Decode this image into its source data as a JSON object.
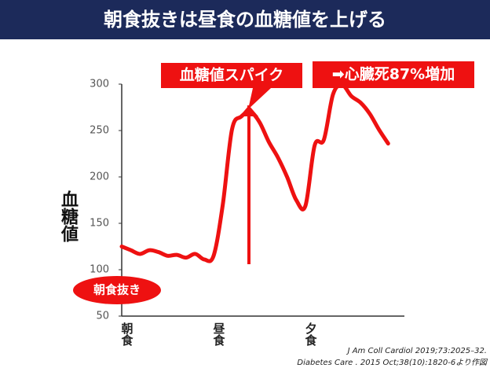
{
  "chart_data": {
    "type": "line",
    "title": "朝食抜きは昼食の血糖値を上げる",
    "y_label": "血糖値",
    "categories": [
      "朝食",
      null,
      null,
      null,
      null,
      null,
      null,
      null,
      null,
      null,
      "昼食",
      null,
      null,
      null,
      null,
      null,
      null,
      null,
      null,
      null,
      "夕食",
      null,
      null,
      null,
      null,
      null,
      null,
      null,
      null,
      null
    ],
    "series": [
      {
        "name": "血糖値",
        "color": "#ee1111",
        "values": [
          125,
          121,
          117,
          121,
          119,
          115,
          116,
          113,
          117,
          111,
          115,
          170,
          251,
          265,
          270,
          259,
          238,
          221,
          200,
          175,
          169,
          234,
          240,
          289,
          299,
          287,
          280,
          268,
          251,
          236
        ]
      }
    ],
    "ylim": [
      50,
      300
    ],
    "yticks": [
      50,
      100,
      150,
      200,
      250,
      300
    ],
    "grid": false,
    "annotations": [
      "血糖値スパイク",
      "➡心臓死87%増加",
      "朝食抜き"
    ],
    "citations": [
      "J Am Coll Cardiol 2019;73:2025–32.",
      "Diabetes Care . 2015 Oct;38(10):1820-6より作図"
    ]
  }
}
